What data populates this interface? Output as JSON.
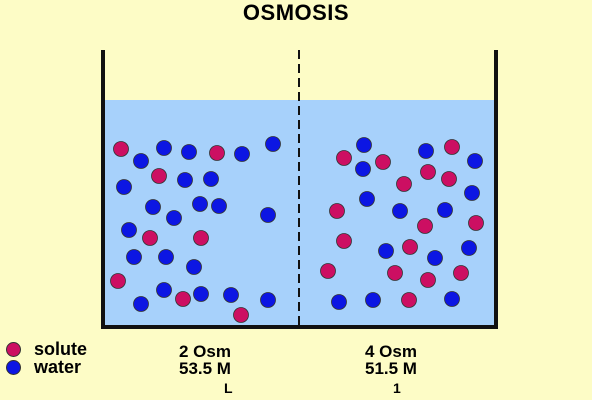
{
  "title": "OSMOSIS",
  "colors": {
    "background": "#fdfcc6",
    "solution": "#a7d1fb",
    "solute": "#cc0f62",
    "water": "#0c16e3",
    "wall": "#111111"
  },
  "legend": [
    {
      "label": "solute",
      "color": "#cc0f62"
    },
    {
      "label": "water",
      "color": "#0c16e3"
    }
  ],
  "sides": [
    {
      "osm": "2 Osm",
      "molarity": "53.5 M",
      "mark": "L"
    },
    {
      "osm": "4 Osm",
      "molarity": "51.5 M",
      "mark": "1"
    }
  ]
}
